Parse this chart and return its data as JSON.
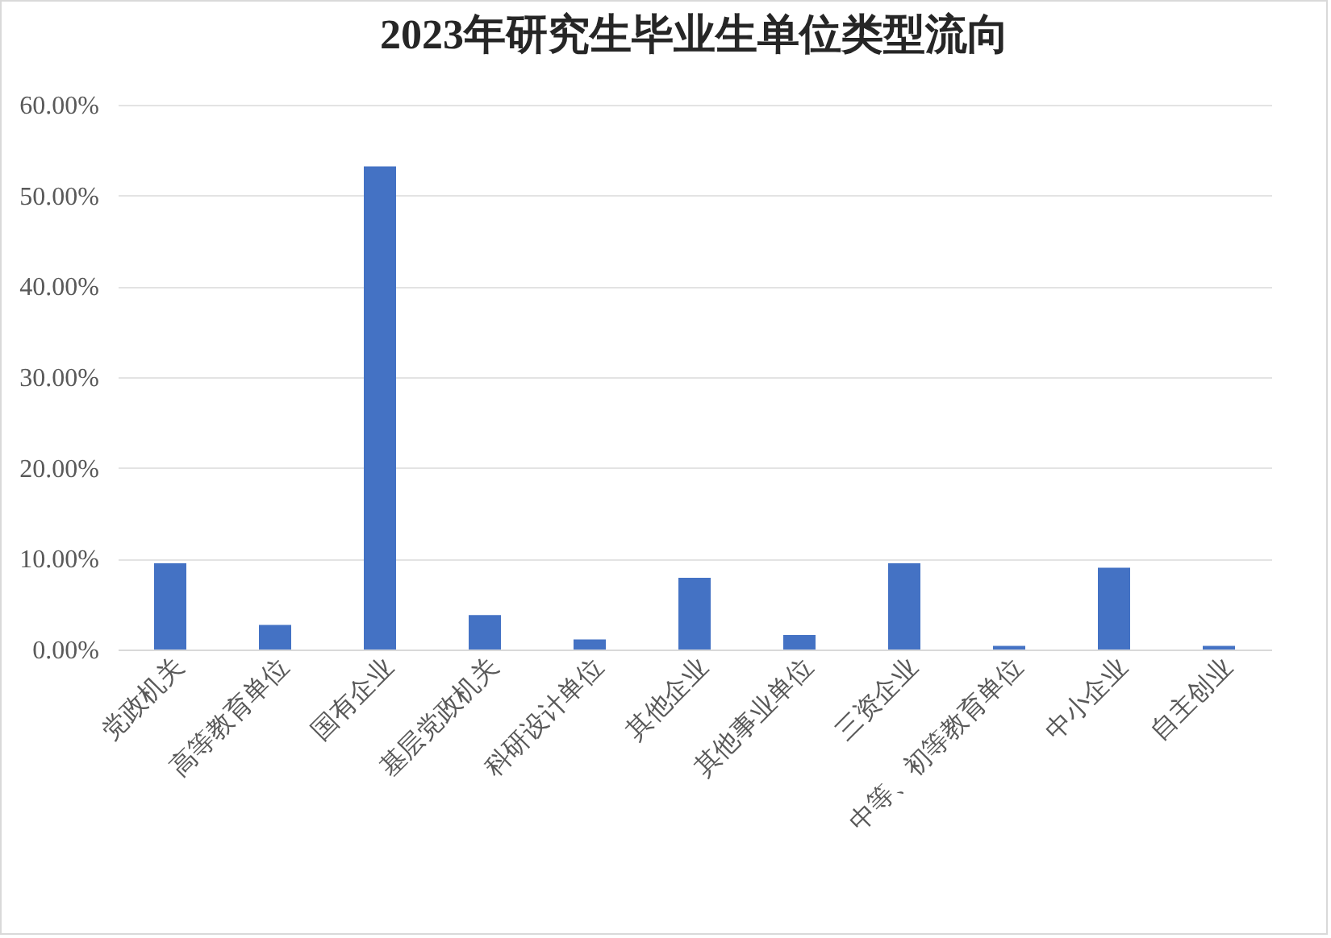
{
  "chart_data": {
    "type": "bar",
    "title": "2023年研究生毕业生单位类型流向",
    "categories": [
      "党政机关",
      "高等教育单位",
      "国有企业",
      "基层党政机关",
      "科研设计单位",
      "其他企业",
      "其他事业单位",
      "三资企业",
      "中等、初等教育单位",
      "中小企业",
      "自主创业"
    ],
    "values": [
      9.5,
      2.7,
      53.2,
      3.8,
      1.1,
      7.9,
      1.6,
      9.5,
      0.4,
      9.0,
      0.4
    ],
    "color": "#4472c4",
    "ylim": [
      0,
      60
    ],
    "yticks": [
      {
        "value": 0,
        "label": "0.00%"
      },
      {
        "value": 10,
        "label": "10.00%"
      },
      {
        "value": 20,
        "label": "20.00%"
      },
      {
        "value": 30,
        "label": "30.00%"
      },
      {
        "value": 40,
        "label": "40.00%"
      },
      {
        "value": 50,
        "label": "50.00%"
      },
      {
        "value": 60,
        "label": "60.00%"
      }
    ],
    "grid": "y"
  }
}
